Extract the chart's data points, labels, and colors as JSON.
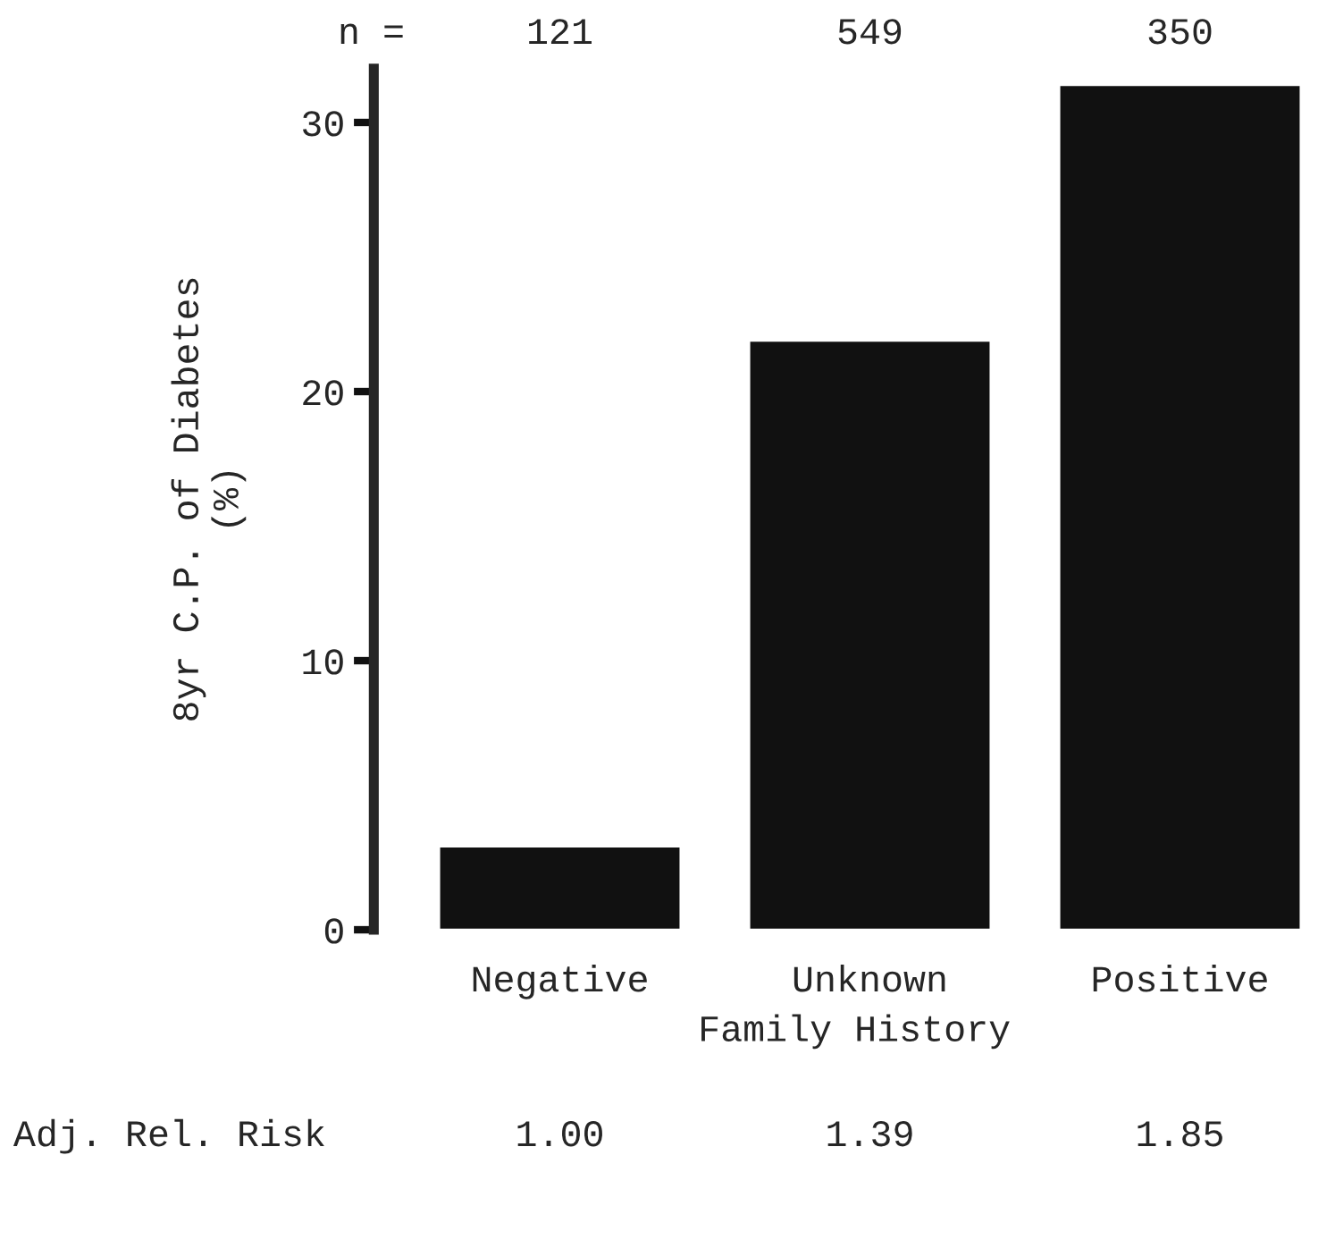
{
  "chart_data": {
    "type": "bar",
    "xlabel": "Family History",
    "ylabel": "8yr C.P. of Diabetes\n(%)",
    "categories": [
      "Negative",
      "Unknown",
      "Positive"
    ],
    "values": [
      3.1,
      21.9,
      31.4
    ],
    "color": "#111111",
    "ylim": [
      0,
      32
    ],
    "yticks": [
      0,
      10,
      20,
      30
    ],
    "grid": false,
    "annotations": [
      "n =",
      "121",
      "549",
      "350",
      "Adj. Rel. Risk",
      "1.00",
      "1.39",
      "1.85"
    ]
  }
}
